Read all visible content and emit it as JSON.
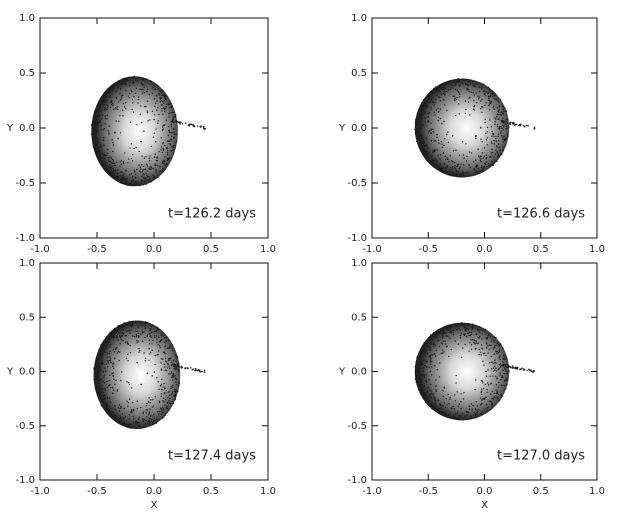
{
  "chart_data": [
    {
      "type": "scatter",
      "annotation": "t=126.2 days",
      "ylabel": "Y",
      "xlim": [
        -1.0,
        1.0
      ],
      "ylim": [
        -1.0,
        1.0
      ],
      "xticks": [
        {
          "value": -1,
          "label": "-1.0"
        },
        {
          "value": -0.5,
          "label": "-0.5"
        },
        {
          "value": 0,
          "label": "0.0"
        },
        {
          "value": 0.5,
          "label": "0.5"
        },
        {
          "value": 1,
          "label": "1.0"
        }
      ],
      "yticks": [
        {
          "value": -1,
          "label": "-1.0"
        },
        {
          "value": -0.5,
          "label": "-0.5"
        },
        {
          "value": 0,
          "label": "0.0"
        },
        {
          "value": 0.5,
          "label": "0.5"
        },
        {
          "value": 1,
          "label": "1.0"
        }
      ]
    },
    {
      "type": "scatter",
      "annotation": "t=126.6 days",
      "ylabel": "Y",
      "xlim": [
        -1.0,
        1.0
      ],
      "ylim": [
        -1.0,
        1.0
      ],
      "xticks": [
        {
          "value": -1,
          "label": "-1.0"
        },
        {
          "value": -0.5,
          "label": "-0.5"
        },
        {
          "value": 0,
          "label": "0.0"
        },
        {
          "value": 0.5,
          "label": "0.5"
        },
        {
          "value": 1,
          "label": "1.0"
        }
      ],
      "yticks": [
        {
          "value": -1,
          "label": "-1.0"
        },
        {
          "value": -0.5,
          "label": "-0.5"
        },
        {
          "value": 0,
          "label": "0.0"
        },
        {
          "value": 0.5,
          "label": "0.5"
        },
        {
          "value": 1,
          "label": "1.0"
        }
      ]
    },
    {
      "type": "scatter",
      "annotation": "t=127.4 days",
      "xlabel": "X",
      "ylabel": "Y",
      "xlim": [
        -1.0,
        1.0
      ],
      "ylim": [
        -1.0,
        1.0
      ],
      "xticks": [
        {
          "value": -1,
          "label": "-1.0"
        },
        {
          "value": -0.5,
          "label": "-0.5"
        },
        {
          "value": 0,
          "label": "0.0"
        },
        {
          "value": 0.5,
          "label": "0.5"
        },
        {
          "value": 1,
          "label": "1.0"
        }
      ],
      "yticks": [
        {
          "value": -1,
          "label": "-1.0"
        },
        {
          "value": -0.5,
          "label": "-0.5"
        },
        {
          "value": 0,
          "label": "0.0"
        },
        {
          "value": 0.5,
          "label": "0.5"
        },
        {
          "value": 1,
          "label": "1.0"
        }
      ]
    },
    {
      "type": "scatter",
      "annotation": "t=127.0 days",
      "xlabel": "X",
      "ylabel": "Y",
      "xlim": [
        -1.0,
        1.0
      ],
      "ylim": [
        -1.0,
        1.0
      ],
      "xticks": [
        {
          "value": -1,
          "label": "-1.0"
        },
        {
          "value": -0.5,
          "label": "-0.5"
        },
        {
          "value": 0,
          "label": "0.0"
        },
        {
          "value": 0.5,
          "label": "0.5"
        },
        {
          "value": 1,
          "label": "1.0"
        }
      ],
      "yticks": [
        {
          "value": -1,
          "label": "-1.0"
        },
        {
          "value": -0.5,
          "label": "-0.5"
        },
        {
          "value": 0,
          "label": "0.0"
        },
        {
          "value": 0.5,
          "label": "0.5"
        },
        {
          "value": 1,
          "label": "1.0"
        }
      ]
    }
  ]
}
